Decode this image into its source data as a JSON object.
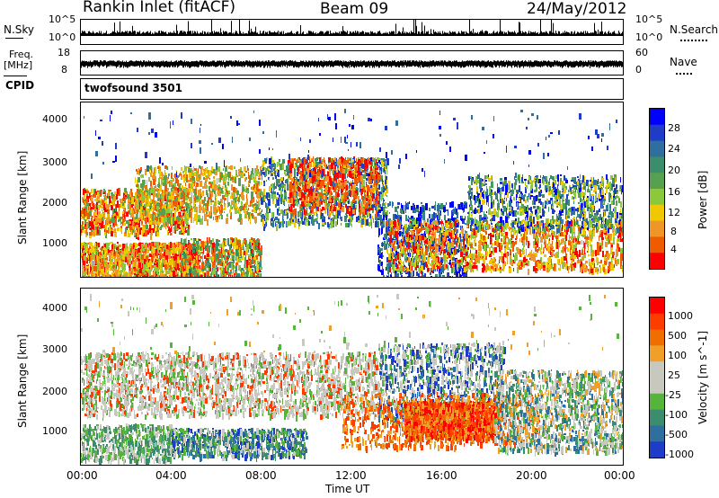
{
  "header": {
    "station": "Rankin Inlet (fitACF)",
    "beam": "Beam 09",
    "date": "24/May/2012"
  },
  "top_panels": {
    "nsky_label": "N.Sky",
    "nsky_ticks": [
      "10^5",
      "10^0"
    ],
    "nsearch_label": "N.Search",
    "nsearch_ticks": [
      "10^5",
      "10^0"
    ],
    "freq_label": "Freq.",
    "freq_unit": "[MHz]",
    "freq_ticks": [
      "18",
      "8"
    ],
    "nave_label": "Nave",
    "nave_ticks": [
      "60",
      "0"
    ],
    "cpid_label": "CPID",
    "cpid_value": "twofsound 3501"
  },
  "colors": {
    "power": [
      "#0000ff",
      "#1e3cc8",
      "#2e6f9f",
      "#3c8c6e",
      "#56a050",
      "#8cc83c",
      "#f0c800",
      "#f09628",
      "#f05a00",
      "#ff0000"
    ],
    "velocity": [
      "#1e3cc8",
      "#2e6f9f",
      "#3c8c6e",
      "#56b43c",
      "#c8c8be",
      "#c8c8be",
      "#f0a028",
      "#f06e00",
      "#ff3c00",
      "#ff0000"
    ]
  },
  "chart_data": [
    {
      "type": "heatmap",
      "name": "Power",
      "ylabel": "Slant Range [km]",
      "yticks": [
        "4000",
        "3000",
        "2000",
        "1000"
      ],
      "ylim": [
        180,
        4500
      ],
      "colorbar_label": "Power [dB]",
      "colorbar_ticks": [
        "28",
        "24",
        "20",
        "16",
        "12",
        "8",
        "4"
      ],
      "clim": [
        0,
        30
      ]
    },
    {
      "type": "heatmap",
      "name": "Velocity",
      "ylabel": "Slant Range [km]",
      "yticks": [
        "4000",
        "3000",
        "2000",
        "1000"
      ],
      "ylim": [
        180,
        4500
      ],
      "xlabel": "Time UT",
      "xticks": [
        "00:00",
        "04:00",
        "08:00",
        "12:00",
        "16:00",
        "20:00",
        "00:00"
      ],
      "xlim": [
        0,
        24
      ],
      "colorbar_label": "Velocity [m s^-1]",
      "colorbar_ticks": [
        "1000",
        "500",
        "100",
        "25",
        "-25",
        "-100",
        "-500",
        "-1000"
      ]
    }
  ]
}
